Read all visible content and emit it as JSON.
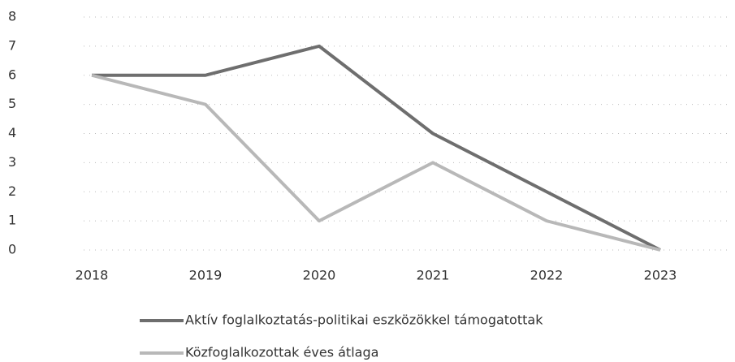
{
  "chart_data": {
    "type": "line",
    "categories": [
      "2018",
      "2019",
      "2020",
      "2021",
      "2022",
      "2023"
    ],
    "series": [
      {
        "name": "Aktív foglalkoztatás-politikai eszközökkel támogatottak",
        "color": "#6e6e6e",
        "values": [
          6,
          6,
          7,
          4,
          2,
          0
        ]
      },
      {
        "name": "Közfoglalkozottak éves átlaga",
        "color": "#b8b8b8",
        "values": [
          6,
          5,
          1,
          3,
          1,
          0
        ]
      }
    ],
    "ylim": [
      0,
      8
    ],
    "yticks": [
      0,
      1,
      2,
      3,
      4,
      5,
      6,
      7,
      8
    ],
    "grid": true,
    "legend": "bottom"
  }
}
